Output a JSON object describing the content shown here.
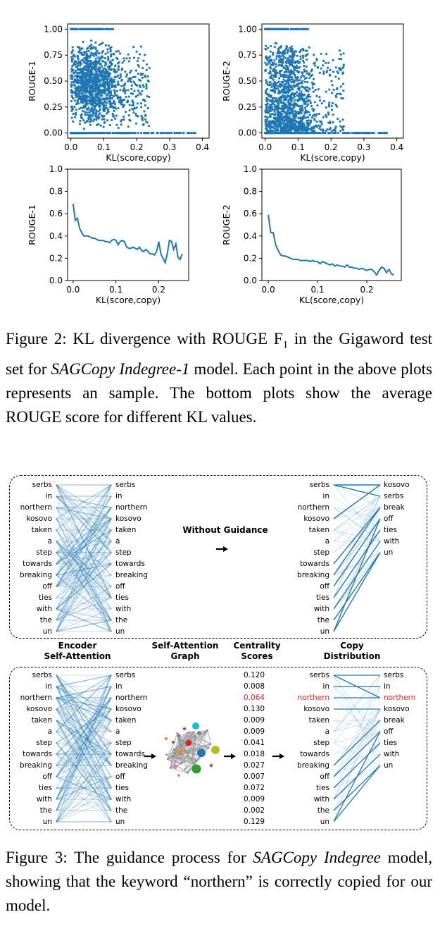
{
  "chart_data": [
    {
      "type": "scatter",
      "xlabel": "KL(score,copy)",
      "ylabel": "ROUGE-1",
      "xticks": [
        "0.0",
        "0.1",
        "0.2",
        "0.3",
        "0.4"
      ],
      "yticks": [
        "0.00",
        "0.25",
        "0.50",
        "0.75",
        "1.00"
      ],
      "xlim": [
        -0.01,
        0.42
      ],
      "ylim": [
        -0.05,
        1.05
      ],
      "color": "#1f77b4",
      "description_of_points": "approx. 1,500 samples; dense for KL 0.0-0.12, rows at ROUGE 0.00 and 1.00"
    },
    {
      "type": "scatter",
      "xlabel": "KL(score,copy)",
      "ylabel": "ROUGE-2",
      "xticks": [
        "0.0",
        "0.1",
        "0.2",
        "0.3",
        "0.4"
      ],
      "yticks": [
        "0.00",
        "0.25",
        "0.50",
        "0.75",
        "1.00"
      ],
      "xlim": [
        -0.01,
        0.42
      ],
      "ylim": [
        -0.05,
        1.05
      ],
      "color": "#1f77b4"
    },
    {
      "type": "line",
      "xlabel": "KL(score,copy)",
      "ylabel": "ROUGE-1",
      "xticks": [
        "0.0",
        "0.1",
        "0.2"
      ],
      "yticks": [
        "0.0",
        "0.2",
        "0.4",
        "0.6",
        "0.8",
        "1.0"
      ],
      "xlim": [
        -0.013,
        0.27
      ],
      "ylim": [
        0,
        1.0
      ],
      "color": "#1f77b4",
      "x": [
        0.0,
        0.005,
        0.01,
        0.015,
        0.02,
        0.025,
        0.03,
        0.035,
        0.04,
        0.045,
        0.05,
        0.055,
        0.06,
        0.065,
        0.07,
        0.075,
        0.08,
        0.085,
        0.09,
        0.095,
        0.1,
        0.105,
        0.11,
        0.115,
        0.12,
        0.125,
        0.13,
        0.135,
        0.14,
        0.145,
        0.15,
        0.155,
        0.16,
        0.165,
        0.17,
        0.175,
        0.18,
        0.185,
        0.19,
        0.195,
        0.2,
        0.205,
        0.21,
        0.215,
        0.22,
        0.225,
        0.23,
        0.235,
        0.24,
        0.245,
        0.25,
        0.255
      ],
      "values": [
        0.69,
        0.54,
        0.56,
        0.47,
        0.43,
        0.4,
        0.4,
        0.4,
        0.39,
        0.38,
        0.38,
        0.37,
        0.36,
        0.36,
        0.36,
        0.35,
        0.35,
        0.34,
        0.36,
        0.37,
        0.36,
        0.32,
        0.35,
        0.36,
        0.35,
        0.3,
        0.29,
        0.29,
        0.3,
        0.29,
        0.28,
        0.3,
        0.27,
        0.26,
        0.28,
        0.26,
        0.24,
        0.24,
        0.23,
        0.26,
        0.35,
        0.24,
        0.2,
        0.16,
        0.24,
        0.36,
        0.35,
        0.28,
        0.33,
        0.21,
        0.19,
        0.24
      ]
    },
    {
      "type": "line",
      "xlabel": "KL(score,copy)",
      "ylabel": "ROUGE-2",
      "xticks": [
        "0.0",
        "0.1",
        "0.2"
      ],
      "yticks": [
        "0.0",
        "0.2",
        "0.4",
        "0.6",
        "0.8",
        "1.0"
      ],
      "xlim": [
        -0.013,
        0.27
      ],
      "ylim": [
        0,
        1.0
      ],
      "color": "#1f77b4",
      "x": [
        0.0,
        0.005,
        0.01,
        0.015,
        0.02,
        0.025,
        0.03,
        0.035,
        0.04,
        0.045,
        0.05,
        0.055,
        0.06,
        0.065,
        0.07,
        0.075,
        0.08,
        0.085,
        0.09,
        0.095,
        0.1,
        0.105,
        0.11,
        0.115,
        0.12,
        0.125,
        0.13,
        0.135,
        0.14,
        0.145,
        0.15,
        0.155,
        0.16,
        0.165,
        0.17,
        0.175,
        0.18,
        0.185,
        0.19,
        0.195,
        0.2,
        0.205,
        0.21,
        0.215,
        0.22,
        0.225,
        0.23,
        0.235,
        0.24,
        0.245,
        0.25,
        0.255
      ],
      "values": [
        0.59,
        0.43,
        0.43,
        0.32,
        0.27,
        0.23,
        0.22,
        0.22,
        0.21,
        0.2,
        0.19,
        0.19,
        0.19,
        0.18,
        0.18,
        0.18,
        0.18,
        0.17,
        0.18,
        0.17,
        0.17,
        0.15,
        0.17,
        0.16,
        0.15,
        0.14,
        0.15,
        0.13,
        0.14,
        0.13,
        0.13,
        0.12,
        0.14,
        0.12,
        0.12,
        0.11,
        0.11,
        0.1,
        0.11,
        0.1,
        0.09,
        0.1,
        0.1,
        0.08,
        0.05,
        0.09,
        0.12,
        0.11,
        0.07,
        0.1,
        0.06,
        0.05
      ]
    }
  ],
  "caption2": {
    "p1": "Figure 2:  KL divergence with ROUGE F",
    "sub": "1",
    "p2": " in the Gigaword test set for ",
    "model": "SAGCopy Indegree-1",
    "p3": " model.  Each point in the above plots represents an sample. The bottom plots show the average ROUGE score for different KL values."
  },
  "figure3": {
    "words_src": [
      "serbs",
      "in",
      "northern",
      "kosovo",
      "taken",
      "a",
      "step",
      "towards",
      "breaking",
      "off",
      "ties",
      "with",
      "the",
      "un"
    ],
    "words_out_top": [
      "kosovo",
      "serbs",
      "break",
      "off",
      "ties",
      "with",
      "un"
    ],
    "words_out_bottom": [
      "serbs",
      "in",
      "northern",
      "kosovo",
      "break",
      "off",
      "ties",
      "with",
      "un"
    ],
    "highlight_word": "northern",
    "without_guidance": "Without Guidance",
    "headers": {
      "encoder": "Encoder\nSelf-Attention",
      "graph": "Self-Attention\nGraph",
      "centrality": "Centrality\nScores",
      "copy": "Copy\nDistribution"
    },
    "scores": [
      "0.120",
      "0.008",
      "0.064",
      "0.130",
      "0.009",
      "0.009",
      "0.041",
      "0.018",
      "0.027",
      "0.007",
      "0.072",
      "0.009",
      "0.002",
      "0.129"
    ],
    "line_color": "#1f77b4",
    "highlight_color": "#e8231b"
  },
  "caption3": {
    "p1": "Figure 3:  The guidance process for ",
    "model": "SAGCopy Indegree",
    "p2": " model, showing that the keyword “northern” is correctly copied for our model."
  }
}
